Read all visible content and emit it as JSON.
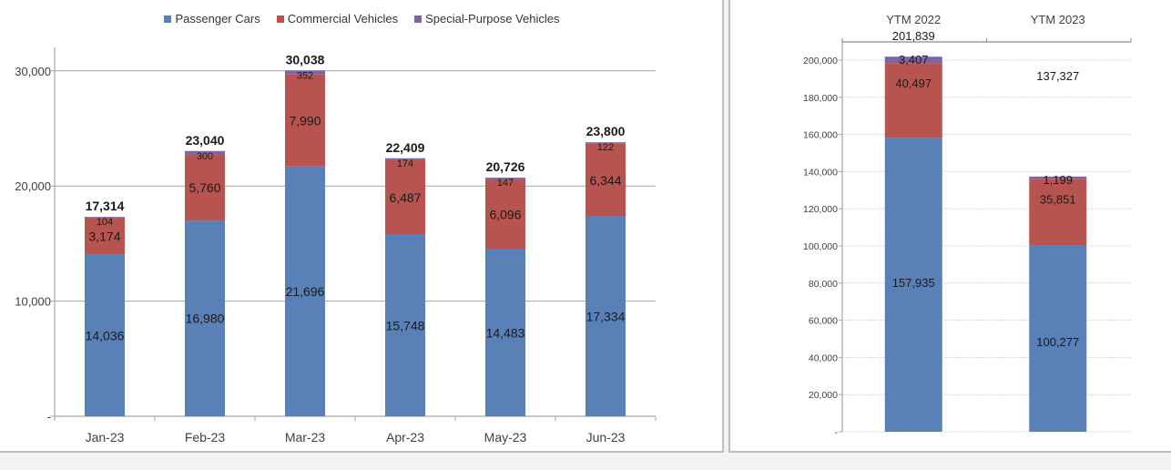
{
  "colors": {
    "passenger": "#5a80b8",
    "commercial": "#b85450",
    "special": "#7c64a6",
    "grid": "#a6a6a6",
    "text": "#1a1a1a",
    "axis_text": "#404040"
  },
  "chart_data": [
    {
      "type": "bar",
      "stacked": true,
      "title": "",
      "xlabel": "",
      "ylabel": "",
      "categories": [
        "Jan-23",
        "Feb-23",
        "Mar-23",
        "Apr-23",
        "May-23",
        "Jun-23"
      ],
      "series": [
        {
          "name": "Passenger Cars",
          "values": [
            14036,
            16980,
            21696,
            15748,
            14483,
            17334
          ],
          "labels": [
            "14,036",
            "16,980",
            "21,696",
            "15,748",
            "14,483",
            "17,334"
          ]
        },
        {
          "name": "Commercial Vehicles",
          "values": [
            3174,
            5760,
            7990,
            6487,
            6096,
            6344
          ],
          "labels": [
            "3,174",
            "5,760",
            "7,990",
            "6,487",
            "6,096",
            "6,344"
          ]
        },
        {
          "name": "Special-Purpose Vehicles",
          "values": [
            104,
            300,
            352,
            174,
            147,
            122
          ],
          "labels": [
            "104",
            "300",
            "352",
            "174",
            "147",
            "122"
          ]
        }
      ],
      "totals": [
        17314,
        23040,
        30038,
        22409,
        20726,
        23800
      ],
      "total_labels": [
        "17,314",
        "23,040",
        "30,038",
        "22,409",
        "20,726",
        "23,800"
      ],
      "ylim": [
        0,
        32000
      ],
      "yticks": [
        0,
        10000,
        20000,
        30000
      ],
      "ytick_labels": [
        "-",
        "10,000",
        "20,000",
        "30,000"
      ],
      "grid": true,
      "legend": {
        "position": "top",
        "entries": [
          "Passenger Cars",
          "Commercial Vehicles",
          "Special-Purpose Vehicles"
        ]
      }
    },
    {
      "type": "bar",
      "stacked": true,
      "title": "",
      "xlabel": "",
      "ylabel": "",
      "categories": [
        "YTM 2022",
        "YTM 2023"
      ],
      "category_axis_position": "top",
      "series": [
        {
          "name": "Passenger Cars",
          "values": [
            157935,
            100277
          ],
          "labels": [
            "157,935",
            "100,277"
          ]
        },
        {
          "name": "Commercial Vehicles",
          "values": [
            40497,
            35851
          ],
          "labels": [
            "40,497",
            "35,851"
          ]
        },
        {
          "name": "Special-Purpose Vehicles",
          "values": [
            3407,
            1199
          ],
          "labels": [
            "3,407",
            "1,199"
          ]
        }
      ],
      "totals": [
        201839,
        137327
      ],
      "total_labels": [
        "201,839",
        "137,327"
      ],
      "ylim": [
        0,
        210000
      ],
      "yticks": [
        0,
        20000,
        40000,
        60000,
        80000,
        100000,
        120000,
        140000,
        160000,
        180000,
        200000
      ],
      "ytick_labels": [
        "-",
        "20,000",
        "40,000",
        "60,000",
        "80,000",
        "100,000",
        "120,000",
        "140,000",
        "160,000",
        "180,000",
        "200,000"
      ],
      "grid": true,
      "legend": {
        "position": "none",
        "entries": []
      }
    }
  ]
}
